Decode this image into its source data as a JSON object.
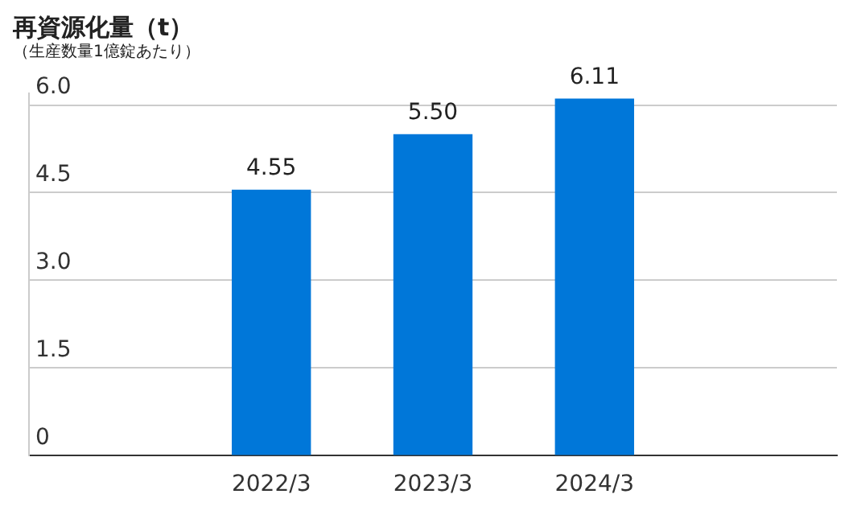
{
  "chart_data": {
    "type": "bar",
    "title": "再資源化量（t）",
    "subtitle": "（生産数量1億錠あたり）",
    "categories": [
      null,
      "2022/3",
      "2023/3",
      "2024/3",
      null
    ],
    "values": [
      null,
      4.55,
      5.5,
      6.11,
      null
    ],
    "value_labels": [
      null,
      "4.55",
      "5.50",
      "6.11",
      null
    ],
    "color": "#0077d9",
    "ylim": [
      0,
      6.2
    ],
    "yticks": [
      {
        "value": 0,
        "label": "0"
      },
      {
        "value": 1.5,
        "label": "1.5"
      },
      {
        "value": 3,
        "label": "3.0"
      },
      {
        "value": 4.5,
        "label": "4.5"
      },
      {
        "value": 6,
        "label": "6.0"
      }
    ],
    "grid": "y",
    "legend": false
  }
}
